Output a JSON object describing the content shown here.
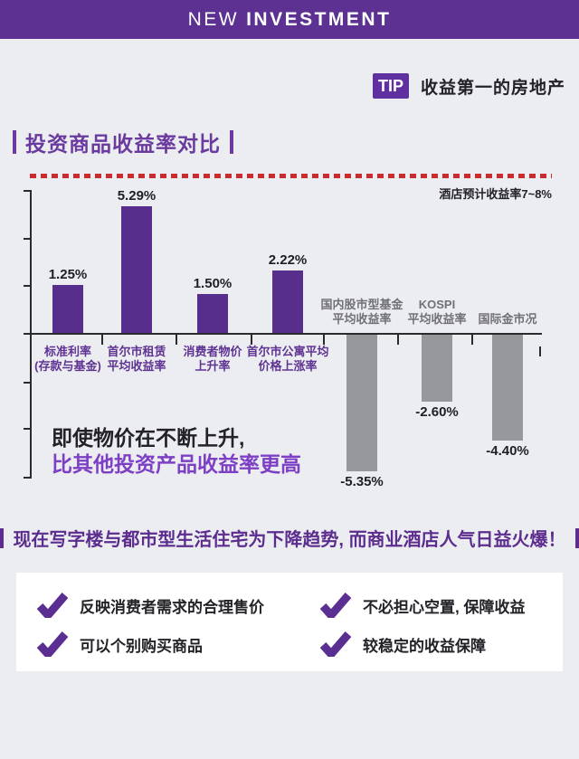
{
  "header": {
    "title_light": "NEW",
    "title_bold": "INVESTMENT"
  },
  "tip": {
    "badge_label": "TIP",
    "title": "收益第一的房地产"
  },
  "section": {
    "title": "投资商品收益率对比"
  },
  "chart_data": {
    "type": "bar",
    "title": "投资商品收益率对比",
    "xlabel": "",
    "ylabel": "",
    "categories": [
      "标准利率\n(存款与基金)",
      "首尔市租赁\n平均收益率",
      "消费者物价\n上升率",
      "首尔市公寓平均\n价格上涨率",
      "国内股市型基金\n平均收益率",
      "KOSPI\n平均收益率",
      "国际金市况"
    ],
    "values": [
      1.25,
      5.29,
      1.5,
      2.22,
      -5.35,
      -2.6,
      -4.4
    ],
    "value_labels": [
      "1.25%",
      "5.29%",
      "1.50%",
      "2.22%",
      "-5.35%",
      "-2.60%",
      "-4.40%"
    ],
    "baseline_value": 0,
    "grid": false,
    "legend": "none",
    "positive_color": "#582e8c",
    "negative_color": "#97989c",
    "reference_line": {
      "label": "酒店预计收益率7~8%",
      "range": [
        7,
        8
      ],
      "color": "#cd2a30",
      "style": "dashed",
      "position": "top"
    },
    "annotation": {
      "line1": "即使物价在不断上升,",
      "line2": "比其他投资产品收益率更高"
    }
  },
  "statement": {
    "text": "现在写字楼与都市型生活住宅为下降趋势, 而商业酒店人气日益火爆！"
  },
  "features": {
    "items": [
      {
        "label": "反映消费者需求的合理售价"
      },
      {
        "label": "不必担心空置, 保障收益"
      },
      {
        "label": "可以个别购买商品"
      },
      {
        "label": "较稳定的收益保障"
      }
    ]
  },
  "colors": {
    "primary_purple": "#5c3191",
    "bar_purple": "#582e8c",
    "accent_purple": "#7d40c4",
    "bar_gray": "#97989c",
    "red": "#cd2a30",
    "background": "#ebedf0",
    "text_dark": "#232227"
  }
}
